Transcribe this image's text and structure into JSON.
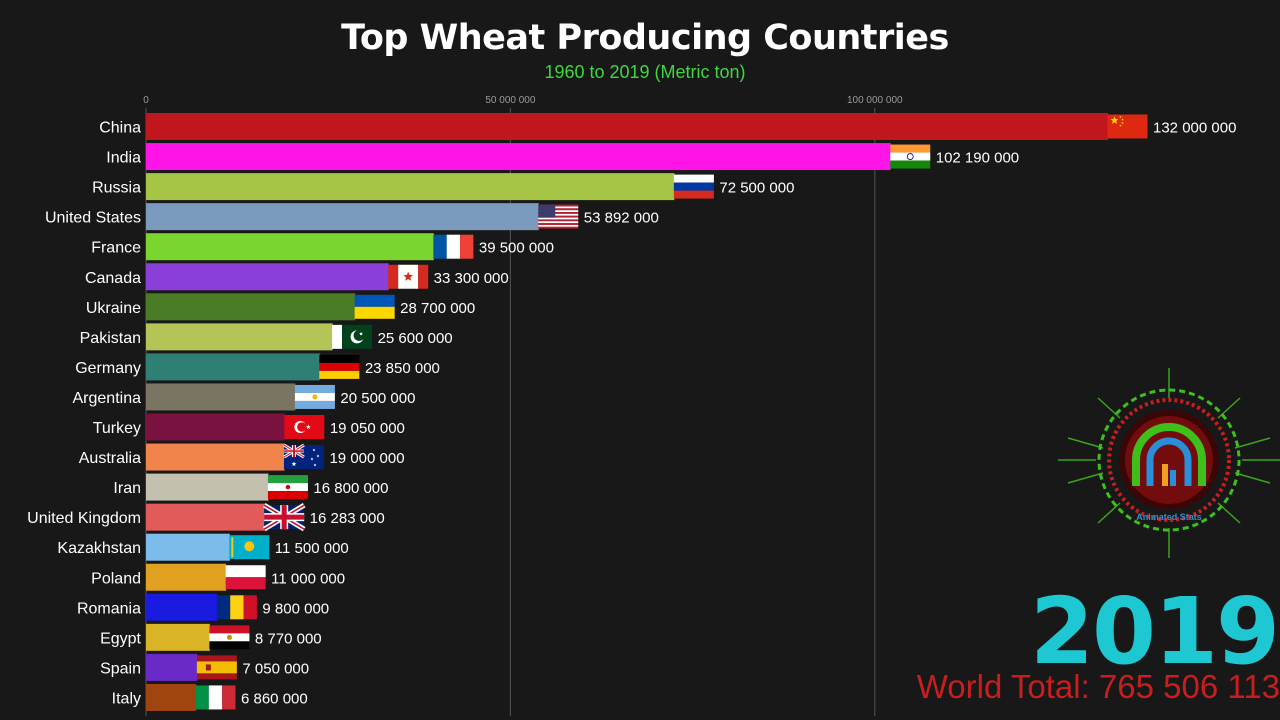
{
  "chart_data": {
    "type": "bar",
    "title": "Top Wheat Producing Countries",
    "subtitle": "1960 to 2019 (Metric ton)",
    "year": "2019",
    "world_total": "World Total: 765 506 113",
    "xlim": [
      0,
      132000000
    ],
    "orientation": "horizontal",
    "grid": true,
    "ticks": [
      {
        "value": 0,
        "label": "0"
      },
      {
        "value": 50000000,
        "label": "50 000 000"
      },
      {
        "value": 100000000,
        "label": "100 000 000"
      }
    ],
    "bars": [
      {
        "label": "China",
        "value": 132000000,
        "value_label": "132 000 000",
        "color": "#c0171e",
        "flag": "china-flag"
      },
      {
        "label": "India",
        "value": 102190000,
        "value_label": "102 190 000",
        "color": "#ff14e8",
        "flag": "india-flag"
      },
      {
        "label": "Russia",
        "value": 72500000,
        "value_label": "72 500 000",
        "color": "#a6c446",
        "flag": "russia-flag"
      },
      {
        "label": "United States",
        "value": 53892000,
        "value_label": "53 892 000",
        "color": "#7a9bbd",
        "flag": "usa-flag"
      },
      {
        "label": "France",
        "value": 39500000,
        "value_label": "39 500 000",
        "color": "#7ad62e",
        "flag": "france-flag"
      },
      {
        "label": "Canada",
        "value": 33300000,
        "value_label": "33 300 000",
        "color": "#8a3fd8",
        "flag": "canada-flag"
      },
      {
        "label": "Ukraine",
        "value": 28700000,
        "value_label": "28 700 000",
        "color": "#4a7c26",
        "flag": "ukraine-flag"
      },
      {
        "label": "Pakistan",
        "value": 25600000,
        "value_label": "25 600 000",
        "color": "#b4c456",
        "flag": "pakistan-flag"
      },
      {
        "label": "Germany",
        "value": 23850000,
        "value_label": "23 850 000",
        "color": "#2f8074",
        "flag": "germany-flag"
      },
      {
        "label": "Argentina",
        "value": 20500000,
        "value_label": "20 500 000",
        "color": "#7a7462",
        "flag": "argentina-flag"
      },
      {
        "label": "Turkey",
        "value": 19050000,
        "value_label": "19 050 000",
        "color": "#7a1240",
        "flag": "turkey-flag"
      },
      {
        "label": "Australia",
        "value": 19000000,
        "value_label": "19 000 000",
        "color": "#f0844a",
        "flag": "australia-flag"
      },
      {
        "label": "Iran",
        "value": 16800000,
        "value_label": "16 800 000",
        "color": "#c4c0ae",
        "flag": "iran-flag"
      },
      {
        "label": "United Kingdom",
        "value": 16283000,
        "value_label": "16 283 000",
        "color": "#e25a5a",
        "flag": "uk-flag"
      },
      {
        "label": "Kazakhstan",
        "value": 11500000,
        "value_label": "11 500 000",
        "color": "#7cbcea",
        "flag": "kazakhstan-flag"
      },
      {
        "label": "Poland",
        "value": 11000000,
        "value_label": "11 000 000",
        "color": "#e0a020",
        "flag": "poland-flag"
      },
      {
        "label": "Romania",
        "value": 9800000,
        "value_label": "9 800 000",
        "color": "#1a1ae0",
        "flag": "romania-flag"
      },
      {
        "label": "Egypt",
        "value": 8770000,
        "value_label": "8 770 000",
        "color": "#d8b426",
        "flag": "egypt-flag"
      },
      {
        "label": "Spain",
        "value": 7050000,
        "value_label": "7 050 000",
        "color": "#6a2ac8",
        "flag": "spain-flag"
      },
      {
        "label": "Italy",
        "value": 6860000,
        "value_label": "6 860 000",
        "color": "#a04410",
        "flag": "italy-flag"
      }
    ]
  },
  "logo": {
    "text": "Animated Stats",
    "icon": "animated-stats-logo"
  }
}
